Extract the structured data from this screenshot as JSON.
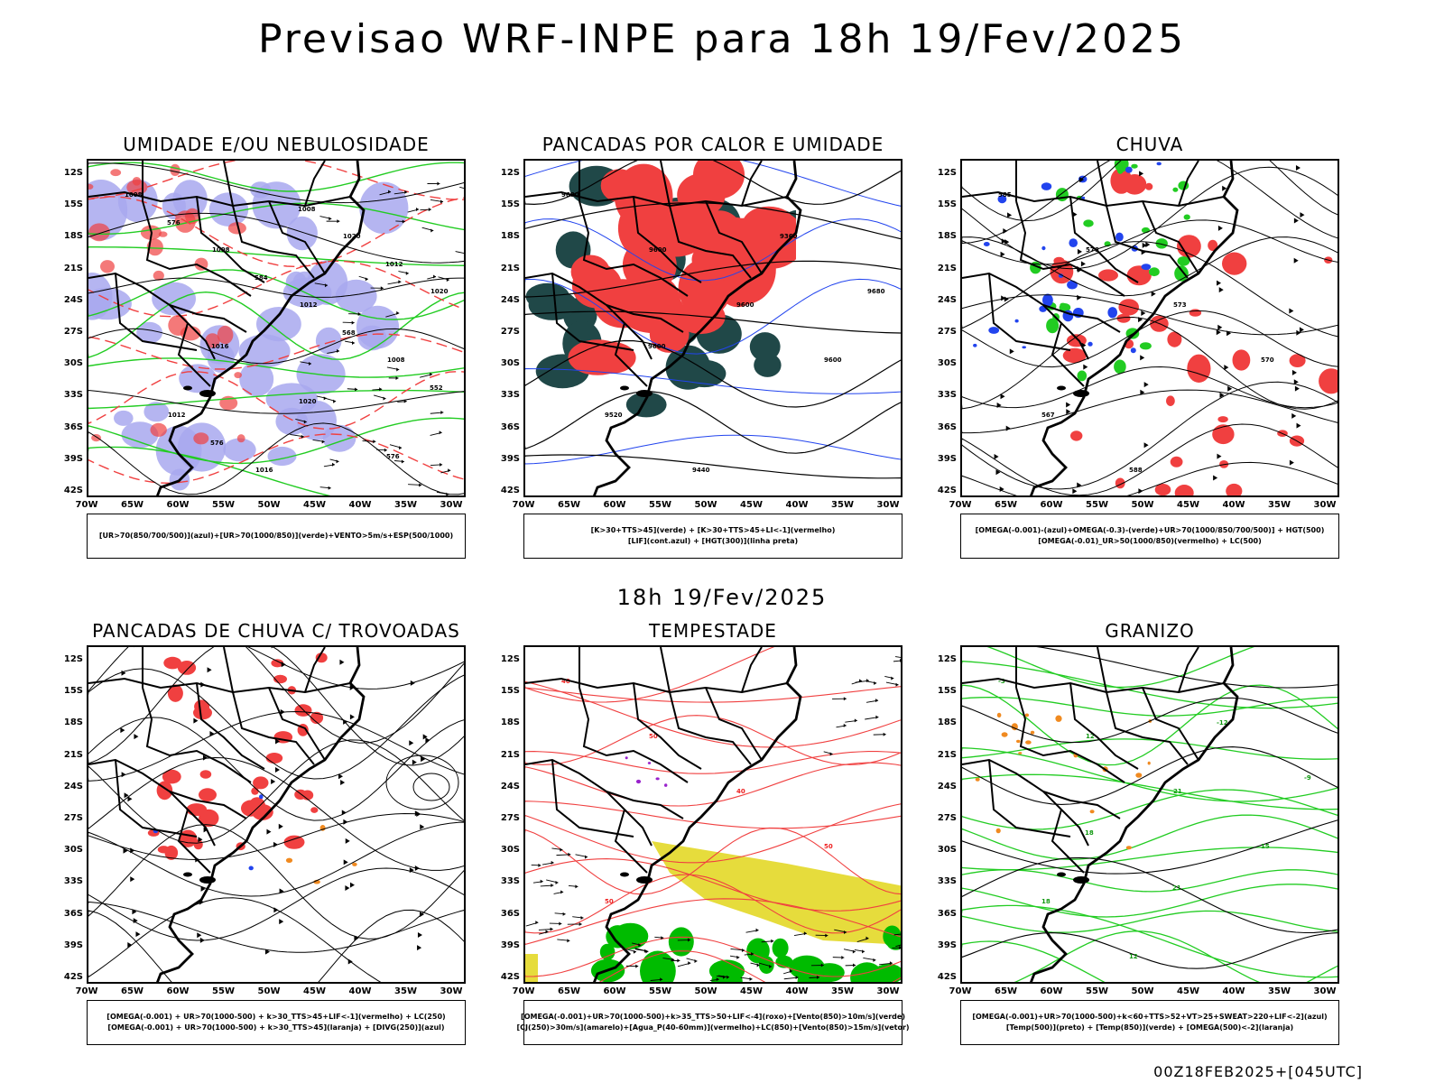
{
  "header": {
    "title": "Previsao WRF-INPE  para 18h 19/Fev/2025"
  },
  "middle": {
    "title": "18h 19/Fev/2025"
  },
  "footer": {
    "stamp": "00Z18FEB2025+[045UTC]"
  },
  "axes": {
    "lat_labels": [
      "12S",
      "15S",
      "18S",
      "21S",
      "24S",
      "27S",
      "30S",
      "33S",
      "36S",
      "39S",
      "42S"
    ],
    "lon_labels": [
      "70W",
      "65W",
      "60W",
      "55W",
      "50W",
      "45W",
      "40W",
      "35W",
      "30W"
    ]
  },
  "colors": {
    "red": "#f04040",
    "green": "#22cc22",
    "blue": "#2244ee",
    "lavender": "#a8a8ee",
    "darkteal": "#204848",
    "yellow": "#e6dc3c",
    "orange": "#f08a20",
    "purple": "#9922cc"
  },
  "panels": [
    {
      "title": "UMIDADE E/OU NEBULOSIDADE",
      "legend": [
        "[UR>70(850/700/500)](azul)+[UR>70(1000/850)](verde)+VENTO>5m/s+ESP(500/1000)"
      ],
      "contour_labels": [
        "1008",
        "1008",
        "1012",
        "1008",
        "1012",
        "1016",
        "1020",
        "1020",
        "1016",
        "1020",
        "576",
        "576",
        "584",
        "568",
        "552",
        "576",
        "1008",
        "1012"
      ]
    },
    {
      "title": "PANCADAS POR CALOR E UMIDADE",
      "legend": [
        "[K>30+TTS>45](verde) + [K>30+TTS>45+LI<-1](vermelho)",
        "[LIF](cont.azul) + [HGT(300)](linha preta)"
      ],
      "contour_labels": [
        "9680",
        "9600",
        "9600",
        "9600",
        "9520",
        "9440",
        "9360",
        "9680",
        "9600"
      ]
    },
    {
      "title": "CHUVA",
      "legend": [
        "[OMEGA(-0.001)-(azul)+OMEGA(-0.3)-(verde)+UR>70(1000/850/700/500)] + HGT(500)",
        "[OMEGA(-0.01)_UR>50(1000/850)(vermelho) + LC(500)"
      ],
      "contour_labels": [
        "585",
        "576",
        "573",
        "570",
        "567",
        "588"
      ]
    },
    {
      "title": "PANCADAS DE CHUVA C/ TROVOADAS",
      "legend": [
        "[OMEGA(-0.001) + UR>70(1000-500) + k>30_TTS>45+LIF<-1](vermelho) + LC(250)",
        "[OMEGA(-0.001) + UR>70(1000-500) + k>30_TTS>45](laranja) + [DIVG(250)](azul)"
      ],
      "contour_labels": []
    },
    {
      "title": "TEMPESTADE",
      "legend": [
        "[OMEGA(-0.001)+UR>70(1000-500)+k>35_TTS>50+LIF<-4](roxo)+[Vento(850)>10m/s](verde)",
        "[CJ(250)>30m/s](amarelo)+[Agua_P(40-60mm)](vermelho)+LC(850)+[Vento(850)>15m/s](vetor)"
      ],
      "contour_labels": [
        "40",
        "50",
        "40",
        "50",
        "50"
      ]
    },
    {
      "title": "GRANIZO",
      "legend": [
        "[OMEGA(-0.001)+UR>70(1000-500)+k<60+TTS>52+VT>25+SWEAT>220+LIF<-2](azul)",
        "[Temp(500)](preto) + [Temp(850)](verde) + [OMEGA(500)<-2](laranja)"
      ],
      "contour_labels": [
        "-3",
        "12",
        "21",
        "15",
        "18",
        "12",
        "-12",
        "-9",
        "18",
        "21"
      ]
    }
  ]
}
